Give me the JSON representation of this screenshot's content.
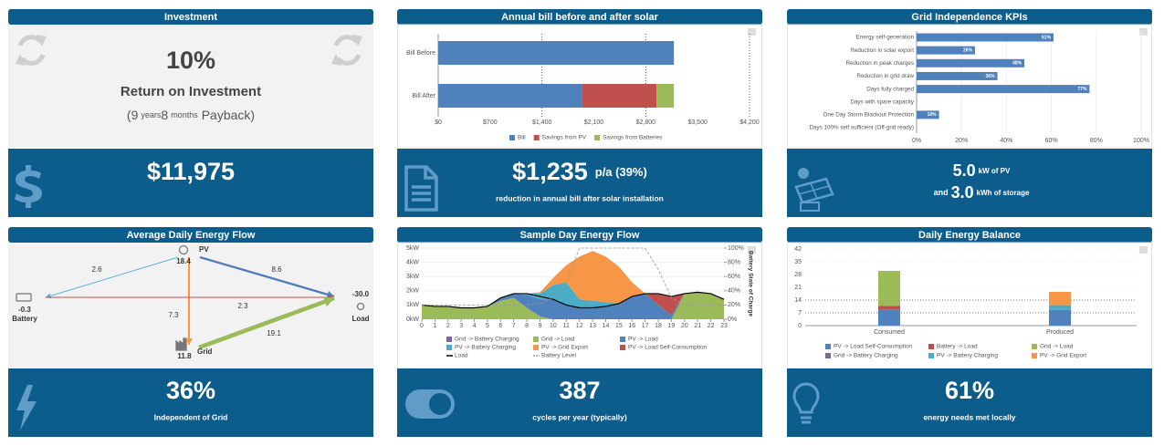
{
  "investment": {
    "title": "Investment",
    "roi": "10%",
    "roi_label": "Return on Investment",
    "payback": {
      "years": "(9",
      "years_unit": "years",
      "months": "8",
      "months_unit": "months",
      "end": "Payback)"
    },
    "stat": "$11,975"
  },
  "bill_stat": {
    "value": "$1,235",
    "suffix": "p/a (39%)",
    "caption": "reduction in annual bill after solar installation"
  },
  "system_stat": {
    "pv": "5.0",
    "pv_unit": "kW of PV",
    "and": "and",
    "storage": "3.0",
    "storage_unit": "kWh of storage"
  },
  "energy_flow": {
    "title": "Average Daily Energy Flow",
    "nodes": [
      {
        "label": "PV",
        "value": "18.4"
      },
      {
        "label": "Battery",
        "value": "-0.3"
      },
      {
        "label": "Load",
        "value": "-30.0"
      },
      {
        "label": "Grid",
        "value": "11.8"
      }
    ],
    "edges": [
      {
        "value": 2.6,
        "color": "#5ab0d8"
      },
      {
        "value": 8.6,
        "color": "#4f7db8"
      },
      {
        "value": 7.3,
        "color": "#f79646"
      },
      {
        "value": 2.3,
        "color": "#c0504d"
      },
      {
        "value": 19.1,
        "color": "#9bbb59"
      }
    ]
  },
  "grid_stat": {
    "value": "36%",
    "caption": "Independent of Grid"
  },
  "cycles_stat": {
    "value": "387",
    "caption": "cycles per year (typically)"
  },
  "local_stat": {
    "value": "61%",
    "caption": "energy needs met locally"
  },
  "chart_data": [
    {
      "type": "hbar_stacked",
      "title": "Annual bill before and after solar",
      "categories": [
        "Bill Before",
        "Bill After"
      ],
      "series": [
        {
          "name": "Bill",
          "color": "#4f81bd",
          "values": [
            3180,
            1945
          ]
        },
        {
          "name": "Savings from PV",
          "color": "#c0504d",
          "values": [
            null,
            1000
          ]
        },
        {
          "name": "Savings from Batteries",
          "color": "#9bbb59",
          "values": [
            null,
            235
          ]
        }
      ],
      "xlim": [
        0,
        4200
      ],
      "xticks": [
        {
          "value": 0,
          "label": "$0"
        },
        {
          "value": 700,
          "label": "$700"
        },
        {
          "value": 1400,
          "label": "$1,400"
        },
        {
          "value": 2100,
          "label": "$2,100"
        },
        {
          "value": 2800,
          "label": "$2,800"
        },
        {
          "value": 3500,
          "label": "$3,500"
        },
        {
          "value": 4200,
          "label": "$4,200"
        }
      ],
      "grid": true,
      "legend": "bottom"
    },
    {
      "type": "hbar",
      "title": "Grid Independence KPIs",
      "categories": [
        "Energy self-generation",
        "Reduction in solar export",
        "Reduction in peak charges",
        "Reduction in grid draw",
        "Days fully charged",
        "Days with spare capacity",
        "One Day Storm Blackout Protection",
        "Days 100% self sufficient (Off-grid ready)"
      ],
      "values": [
        61,
        26,
        48,
        36,
        77,
        0,
        10,
        0
      ],
      "value_labels": [
        "61%",
        "26%",
        "48%",
        "36%",
        "77%",
        null,
        "10%",
        null
      ],
      "color": "#4f81bd",
      "xlim": [
        0,
        100
      ],
      "xticks": [
        {
          "value": 0,
          "label": "0%"
        },
        {
          "value": 20,
          "label": "20%"
        },
        {
          "value": 40,
          "label": "40%"
        },
        {
          "value": 60,
          "label": "60%"
        },
        {
          "value": 80,
          "label": "80%"
        },
        {
          "value": 100,
          "label": "100%"
        }
      ],
      "grid": true
    },
    {
      "type": "area_stacked",
      "title": "Sample Day Energy Flow",
      "x": [
        0,
        1,
        2,
        3,
        4,
        5,
        6,
        7,
        8,
        9,
        10,
        11,
        12,
        13,
        14,
        15,
        16,
        17,
        18,
        19,
        20,
        21,
        22,
        23
      ],
      "xlim": [
        0,
        23
      ],
      "xticks": [
        0,
        1,
        2,
        3,
        4,
        5,
        6,
        7,
        8,
        9,
        10,
        11,
        12,
        13,
        14,
        15,
        16,
        17,
        18,
        19,
        20,
        21,
        22,
        23
      ],
      "series": [
        {
          "name": "Grid -> Battery Charging",
          "color": "#8064a2",
          "values": [
            0,
            0,
            0,
            0,
            0,
            0,
            0,
            0,
            0,
            0,
            0,
            0,
            0,
            0,
            0,
            0,
            0,
            0,
            0,
            0,
            0,
            0,
            0,
            0
          ]
        },
        {
          "name": "Grid -> Load",
          "color": "#9bbb59",
          "values": [
            1.0,
            0.9,
            0.9,
            0.8,
            0.8,
            0.9,
            1.3,
            1.5,
            0.8,
            0.2,
            0,
            0,
            0,
            0,
            0,
            0,
            0,
            0,
            0,
            0,
            1.8,
            1.9,
            1.8,
            1.4
          ]
        },
        {
          "name": "PV -> Load",
          "color": "#4f81bd",
          "values": [
            0,
            0,
            0,
            0,
            0,
            0,
            0.2,
            0.3,
            0.9,
            1.2,
            1.4,
            1.0,
            0.8,
            0.8,
            0.9,
            1.1,
            1.6,
            1.8,
            1.0,
            0.3,
            0,
            0,
            0,
            0
          ]
        },
        {
          "name": "PV -> Battery Charging",
          "color": "#4bacc6",
          "values": [
            0,
            0,
            0,
            0,
            0,
            0,
            0,
            0,
            0.1,
            0.4,
            1.0,
            1.6,
            0.6,
            0.5,
            0.3,
            0,
            0,
            0,
            0,
            0,
            0,
            0,
            0,
            0
          ]
        },
        {
          "name": "PV -> Grid Export",
          "color": "#f79646",
          "values": [
            0,
            0,
            0,
            0,
            0,
            0,
            0,
            0,
            0,
            0.1,
            0.5,
            1.2,
            3.0,
            3.5,
            3.2,
            2.6,
            1.0,
            0,
            0,
            0,
            0,
            0,
            0,
            0
          ]
        },
        {
          "name": "PV -> Load Self-Consumption",
          "color": "#c0504d",
          "values": [
            0,
            0,
            0,
            0,
            0,
            0,
            0,
            0,
            0,
            0,
            0,
            0,
            0,
            0,
            0,
            0,
            0,
            0,
            0.8,
            1.3,
            0,
            0,
            0,
            0
          ]
        },
        {
          "name": "Load",
          "color": "#000000",
          "type": "line",
          "values": [
            1.0,
            0.9,
            0.9,
            0.8,
            0.8,
            0.9,
            1.5,
            1.8,
            1.8,
            1.6,
            1.4,
            1.0,
            0.8,
            0.8,
            0.9,
            1.1,
            1.6,
            1.8,
            1.8,
            1.6,
            1.8,
            1.9,
            1.8,
            1.4
          ]
        },
        {
          "name": "Battery Level",
          "color": "#999999",
          "type": "line",
          "dashed": true,
          "axis": "y2",
          "values": [
            20,
            20,
            20,
            20,
            20,
            20,
            20,
            20,
            20,
            22,
            30,
            50,
            100,
            100,
            100,
            100,
            100,
            100,
            70,
            30,
            20,
            20,
            20,
            20
          ]
        }
      ],
      "ylim": [
        0,
        5
      ],
      "yticks": [
        {
          "value": 0,
          "label": "0kW"
        },
        {
          "value": 1,
          "label": "1kW"
        },
        {
          "value": 2,
          "label": "2kW"
        },
        {
          "value": 3,
          "label": "3kW"
        },
        {
          "value": 4,
          "label": "4kW"
        },
        {
          "value": 5,
          "label": "5kW"
        }
      ],
      "y2lim": [
        0,
        100
      ],
      "y2ticks": [
        {
          "value": 0,
          "label": "0%"
        },
        {
          "value": 20,
          "label": "20%"
        },
        {
          "value": 40,
          "label": "40%"
        },
        {
          "value": 60,
          "label": "60%"
        },
        {
          "value": 80,
          "label": "80%"
        },
        {
          "value": 100,
          "label": "100%"
        }
      ],
      "y2_label": "Battery State of Charge",
      "legend": "bottom"
    },
    {
      "type": "bar_stacked",
      "title": "Daily Energy Balance",
      "categories": [
        "Consumed",
        "Produced"
      ],
      "series": [
        {
          "name": "PV -> Load Self-Consumption",
          "color": "#4f81bd",
          "values": [
            8.6,
            8.6
          ]
        },
        {
          "name": "Battery -> Load",
          "color": "#c0504d",
          "values": [
            2.3,
            0
          ]
        },
        {
          "name": "Grid -> Load",
          "color": "#9bbb59",
          "values": [
            19.1,
            0
          ]
        },
        {
          "name": "Grid -> Battery Charging",
          "color": "#8064a2",
          "values": [
            0,
            0
          ]
        },
        {
          "name": "PV -> Battery Charging",
          "color": "#4bacc6",
          "values": [
            0,
            2.6
          ]
        },
        {
          "name": "PV -> Grid Export",
          "color": "#f79646",
          "values": [
            0,
            7.3
          ]
        }
      ],
      "ylim": [
        0,
        42
      ],
      "yticks": [
        0,
        7,
        14,
        21,
        28,
        35,
        42
      ],
      "grid": true,
      "legend": "bottom"
    }
  ]
}
